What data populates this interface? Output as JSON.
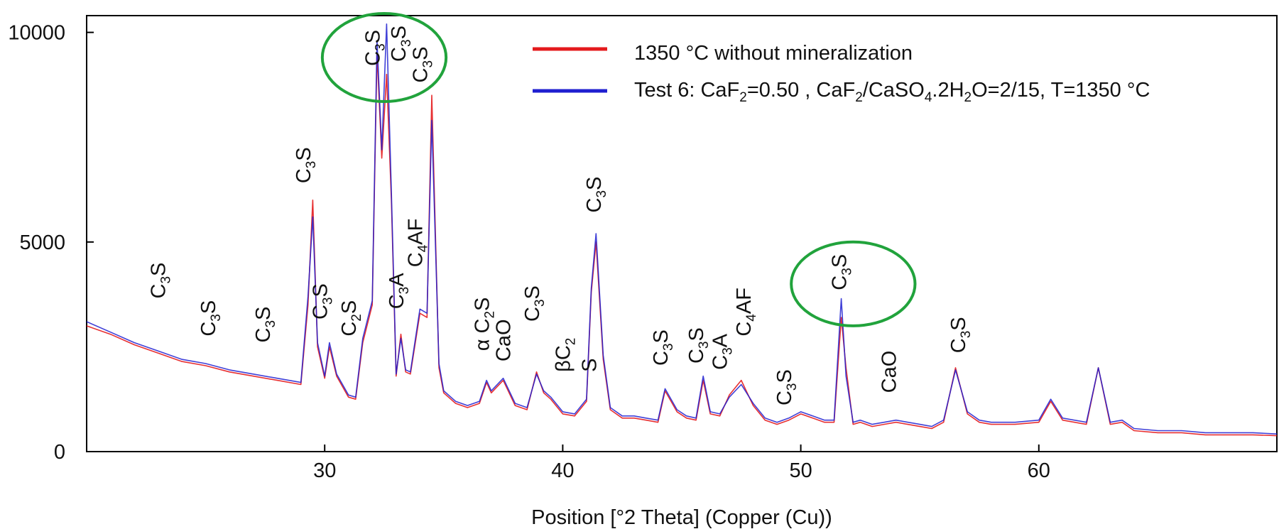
{
  "chart_data": {
    "type": "line",
    "title": "",
    "xlabel": "Position [°2 Theta] (Copper (Cu))",
    "ylabel": "",
    "xlim": [
      20,
      70
    ],
    "ylim": [
      0,
      10400
    ],
    "x_ticks": [
      30,
      40,
      50,
      60
    ],
    "y_ticks": [
      0,
      5000,
      10000
    ],
    "grid": false,
    "legend_position": "top-right",
    "series": [
      {
        "name": "1350 °C without mineralization",
        "color": "#e41a1c",
        "x": [
          20,
          21,
          22,
          23,
          24,
          25,
          26,
          27,
          28,
          29,
          29.3,
          29.5,
          29.7,
          30,
          30.2,
          30.5,
          31,
          31.3,
          31.6,
          32,
          32.2,
          32.4,
          32.6,
          32.8,
          33,
          33.2,
          33.4,
          33.6,
          34,
          34.3,
          34.5,
          34.8,
          35,
          35.5,
          36,
          36.5,
          36.8,
          37,
          37.5,
          38,
          38.5,
          38.9,
          39.2,
          39.5,
          40,
          40.5,
          41,
          41.2,
          41.4,
          41.7,
          42,
          42.5,
          43,
          43.5,
          44,
          44.3,
          44.8,
          45.2,
          45.6,
          45.9,
          46.2,
          46.6,
          47,
          47.5,
          48,
          48.5,
          49,
          49.5,
          50,
          50.5,
          51,
          51.4,
          51.7,
          51.9,
          52.2,
          52.5,
          53,
          53.5,
          54,
          55,
          55.5,
          56,
          56.5,
          57,
          57.5,
          58,
          59,
          60,
          60.5,
          61,
          62,
          62.5,
          63,
          63.5,
          64,
          65,
          66,
          67,
          68,
          69,
          70
        ],
        "y": [
          3000,
          2800,
          2550,
          2350,
          2150,
          2050,
          1900,
          1800,
          1700,
          1600,
          3500,
          6000,
          2500,
          1750,
          2500,
          1800,
          1300,
          1250,
          2600,
          3500,
          9500,
          7000,
          9000,
          6000,
          1800,
          2800,
          1900,
          1850,
          3300,
          3200,
          8500,
          2000,
          1400,
          1150,
          1050,
          1150,
          1650,
          1400,
          1700,
          1100,
          1000,
          1900,
          1400,
          1250,
          900,
          850,
          1200,
          3800,
          5000,
          2200,
          1000,
          800,
          800,
          750,
          700,
          1450,
          950,
          800,
          750,
          1700,
          900,
          850,
          1350,
          1700,
          1100,
          750,
          650,
          750,
          900,
          800,
          700,
          700,
          3200,
          2000,
          650,
          700,
          600,
          650,
          700,
          600,
          550,
          700,
          2000,
          900,
          700,
          650,
          650,
          700,
          1200,
          750,
          650,
          2000,
          650,
          700,
          500,
          450,
          450,
          400,
          400,
          400,
          380
        ]
      },
      {
        "name": "Test 6: CaF2=0.50 , CaF2/CaSO4.2H2O=2/15, T=1350 °C",
        "color": "#1f1fd0",
        "x": [
          20,
          21,
          22,
          23,
          24,
          25,
          26,
          27,
          28,
          29,
          29.3,
          29.5,
          29.7,
          30,
          30.2,
          30.5,
          31,
          31.3,
          31.6,
          32,
          32.2,
          32.4,
          32.6,
          32.8,
          33,
          33.2,
          33.4,
          33.6,
          34,
          34.3,
          34.5,
          34.8,
          35,
          35.5,
          36,
          36.5,
          36.8,
          37,
          37.5,
          38,
          38.5,
          38.9,
          39.2,
          39.5,
          40,
          40.5,
          41,
          41.2,
          41.4,
          41.7,
          42,
          42.5,
          43,
          43.5,
          44,
          44.3,
          44.8,
          45.2,
          45.6,
          45.9,
          46.2,
          46.6,
          47,
          47.5,
          48,
          48.5,
          49,
          49.5,
          50,
          50.5,
          51,
          51.4,
          51.7,
          51.9,
          52.2,
          52.5,
          53,
          53.5,
          54,
          55,
          55.5,
          56,
          56.5,
          57,
          57.5,
          58,
          59,
          60,
          60.5,
          61,
          62,
          62.5,
          63,
          63.5,
          64,
          65,
          66,
          67,
          68,
          69,
          70
        ],
        "y": [
          3100,
          2850,
          2600,
          2400,
          2200,
          2100,
          1950,
          1850,
          1750,
          1650,
          3700,
          5600,
          2600,
          1800,
          2600,
          1850,
          1350,
          1300,
          2700,
          3600,
          9800,
          7200,
          10200,
          6200,
          1850,
          2700,
          1950,
          1900,
          3400,
          3300,
          7900,
          2100,
          1450,
          1200,
          1100,
          1200,
          1700,
          1450,
          1750,
          1150,
          1050,
          1850,
          1450,
          1300,
          950,
          900,
          1250,
          3900,
          5200,
          2300,
          1050,
          850,
          850,
          800,
          750,
          1500,
          1000,
          850,
          800,
          1800,
          950,
          900,
          1300,
          1600,
          1150,
          800,
          700,
          800,
          950,
          850,
          750,
          750,
          3650,
          1800,
          700,
          750,
          650,
          700,
          750,
          650,
          600,
          750,
          1950,
          950,
          750,
          700,
          700,
          750,
          1250,
          800,
          700,
          2000,
          700,
          750,
          550,
          500,
          500,
          450,
          450,
          450,
          420
        ]
      }
    ],
    "legend": {
      "series1_label": "1350 °C without mineralization",
      "series2": {
        "part1": "Test 6: CaF",
        "sub1": "2",
        "part2": "=0.50 , CaF",
        "sub2": "2",
        "part3": "/CaSO",
        "sub3": "4",
        "part4": ".2H",
        "sub4": "2",
        "part5": "O=2/15, T=1350 °C"
      }
    },
    "annotations": [
      {
        "x": 23.3,
        "y": 3650,
        "parts": [
          [
            "C",
            0
          ],
          [
            "3",
            1
          ],
          [
            "S",
            0
          ]
        ]
      },
      {
        "x": 25.4,
        "y": 2750,
        "parts": [
          [
            "C",
            0
          ],
          [
            "3",
            1
          ],
          [
            "S",
            0
          ]
        ]
      },
      {
        "x": 27.7,
        "y": 2600,
        "parts": [
          [
            "C",
            0
          ],
          [
            "3",
            1
          ],
          [
            "S",
            0
          ]
        ]
      },
      {
        "x": 29.4,
        "y": 6400,
        "parts": [
          [
            "C",
            0
          ],
          [
            "3",
            1
          ],
          [
            "S",
            0
          ]
        ]
      },
      {
        "x": 30.1,
        "y": 3150,
        "parts": [
          [
            "C",
            0
          ],
          [
            "3",
            1
          ],
          [
            "S",
            0
          ]
        ]
      },
      {
        "x": 31.3,
        "y": 2750,
        "parts": [
          [
            "C",
            0
          ],
          [
            "2",
            1
          ],
          [
            "S",
            0
          ]
        ]
      },
      {
        "x": 32.3,
        "y": 9200,
        "parts": [
          [
            "C",
            0
          ],
          [
            "3",
            1
          ],
          [
            "S",
            0
          ]
        ]
      },
      {
        "x": 33.4,
        "y": 9300,
        "parts": [
          [
            "C",
            0
          ],
          [
            "3",
            1
          ],
          [
            "S",
            0
          ]
        ]
      },
      {
        "x": 34.3,
        "y": 8800,
        "parts": [
          [
            "C",
            0
          ],
          [
            "3",
            1
          ],
          [
            "S",
            0
          ]
        ]
      },
      {
        "x": 33.3,
        "y": 3400,
        "parts": [
          [
            "C",
            0
          ],
          [
            "3",
            1
          ],
          [
            "A",
            0
          ]
        ]
      },
      {
        "x": 34.1,
        "y": 4400,
        "parts": [
          [
            "C",
            0
          ],
          [
            "4",
            1
          ],
          [
            "AF",
            0
          ]
        ]
      },
      {
        "x": 36.9,
        "y": 2400,
        "parts": [
          [
            "α C",
            0
          ],
          [
            "2",
            1
          ],
          [
            "S",
            0
          ]
        ]
      },
      {
        "x": 37.8,
        "y": 2150,
        "parts": [
          [
            "CaO",
            0
          ]
        ]
      },
      {
        "x": 39.0,
        "y": 3100,
        "parts": [
          [
            "C",
            0
          ],
          [
            "3",
            1
          ],
          [
            "S",
            0
          ]
        ]
      },
      {
        "x": 40.3,
        "y": 1900,
        "parts": [
          [
            "βC",
            0
          ],
          [
            "2",
            1
          ]
        ]
      },
      {
        "x": 41.4,
        "y": 1900,
        "parts": [
          [
            "S",
            0
          ]
        ]
      },
      {
        "x": 41.6,
        "y": 5700,
        "parts": [
          [
            "C",
            0
          ],
          [
            "3",
            1
          ],
          [
            "S",
            0
          ]
        ]
      },
      {
        "x": 44.4,
        "y": 2050,
        "parts": [
          [
            "C",
            0
          ],
          [
            "3",
            1
          ],
          [
            "S",
            0
          ]
        ]
      },
      {
        "x": 45.9,
        "y": 2100,
        "parts": [
          [
            "C",
            0
          ],
          [
            "3",
            1
          ],
          [
            "S",
            0
          ]
        ]
      },
      {
        "x": 46.9,
        "y": 1950,
        "parts": [
          [
            "C",
            0
          ],
          [
            "3",
            1
          ],
          [
            "A",
            0
          ]
        ]
      },
      {
        "x": 47.9,
        "y": 2750,
        "parts": [
          [
            "C",
            0
          ],
          [
            "4",
            1
          ],
          [
            "AF",
            0
          ]
        ]
      },
      {
        "x": 49.6,
        "y": 1100,
        "parts": [
          [
            "C",
            0
          ],
          [
            "3",
            1
          ],
          [
            "S",
            0
          ]
        ]
      },
      {
        "x": 51.9,
        "y": 3850,
        "parts": [
          [
            "C",
            0
          ],
          [
            "3",
            1
          ],
          [
            "S",
            0
          ]
        ]
      },
      {
        "x": 54.0,
        "y": 1400,
        "parts": [
          [
            "CaO",
            0
          ]
        ]
      },
      {
        "x": 56.9,
        "y": 2350,
        "parts": [
          [
            "C",
            0
          ],
          [
            "3",
            1
          ],
          [
            "S",
            0
          ]
        ]
      }
    ],
    "highlight_circles": [
      {
        "cx": 32.5,
        "cy": 9400,
        "rx": 2.6,
        "ry": 1050,
        "color": "#21a33c"
      },
      {
        "cx": 52.2,
        "cy": 4000,
        "rx": 2.6,
        "ry": 1000,
        "color": "#21a33c"
      }
    ]
  }
}
